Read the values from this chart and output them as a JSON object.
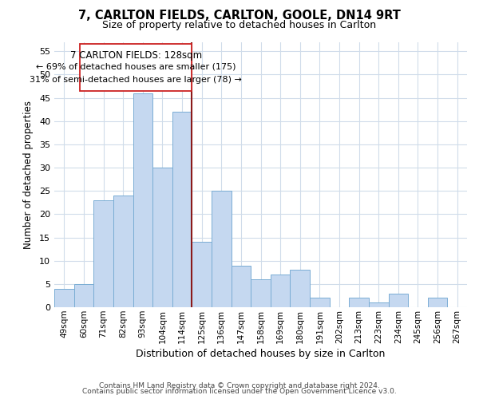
{
  "title": "7, CARLTON FIELDS, CARLTON, GOOLE, DN14 9RT",
  "subtitle": "Size of property relative to detached houses in Carlton",
  "xlabel": "Distribution of detached houses by size in Carlton",
  "ylabel": "Number of detached properties",
  "bar_color": "#c5d8f0",
  "bar_edge_color": "#7aadd4",
  "categories": [
    "49sqm",
    "60sqm",
    "71sqm",
    "82sqm",
    "93sqm",
    "104sqm",
    "114sqm",
    "125sqm",
    "136sqm",
    "147sqm",
    "158sqm",
    "169sqm",
    "180sqm",
    "191sqm",
    "202sqm",
    "213sqm",
    "223sqm",
    "234sqm",
    "245sqm",
    "256sqm",
    "267sqm"
  ],
  "values": [
    4,
    5,
    23,
    24,
    46,
    30,
    42,
    14,
    25,
    9,
    6,
    7,
    8,
    2,
    0,
    2,
    1,
    3,
    0,
    2,
    0
  ],
  "vline_x_idx": 7,
  "vline_color": "#8b1a1a",
  "ylim": [
    0,
    57
  ],
  "yticks": [
    0,
    5,
    10,
    15,
    20,
    25,
    30,
    35,
    40,
    45,
    50,
    55
  ],
  "annotation_title": "7 CARLTON FIELDS: 128sqm",
  "annotation_line1": "← 69% of detached houses are smaller (175)",
  "annotation_line2": "31% of semi-detached houses are larger (78) →",
  "footer1": "Contains HM Land Registry data © Crown copyright and database right 2024.",
  "footer2": "Contains public sector information licensed under the Open Government Licence v3.0.",
  "background_color": "#ffffff",
  "grid_color": "#d0dcea"
}
